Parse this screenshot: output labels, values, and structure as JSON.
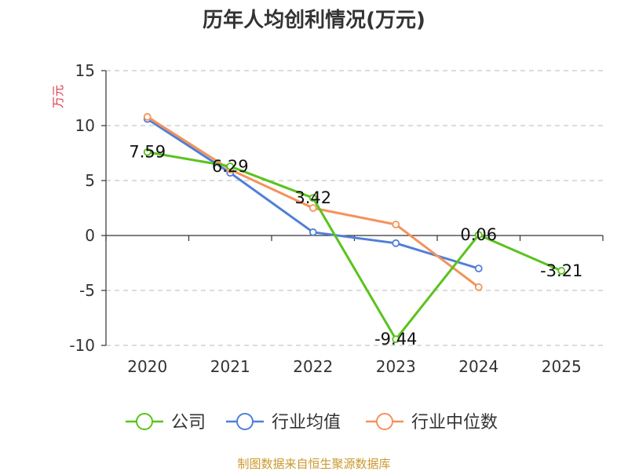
{
  "chart_data": {
    "type": "line",
    "title": "历年人均创利情况(万元)",
    "ylabel": "万元",
    "categories": [
      "2020",
      "2021",
      "2022",
      "2023",
      "2024",
      "2025"
    ],
    "ylim": [
      -10,
      15
    ],
    "yticks": [
      15,
      10,
      5,
      0,
      -5,
      -10
    ],
    "grid": true,
    "legend_position": "bottom",
    "series": [
      {
        "name": "公司",
        "color": "#5ac31b",
        "values": [
          7.59,
          6.29,
          3.42,
          -9.44,
          0.06,
          -3.21
        ],
        "labels": [
          "7.59",
          "6.29",
          "3.42",
          "-9.44",
          "0.06",
          "-3.21"
        ]
      },
      {
        "name": "行业均值",
        "color": "#4f7fd8",
        "values": [
          10.6,
          5.7,
          0.3,
          -0.7,
          -3.0,
          null
        ]
      },
      {
        "name": "行业中位数",
        "color": "#f5925a",
        "values": [
          10.8,
          6.0,
          2.5,
          1.0,
          -4.7,
          null
        ]
      }
    ]
  },
  "footer": {
    "source": "制图数据来自恒生聚源数据库"
  }
}
